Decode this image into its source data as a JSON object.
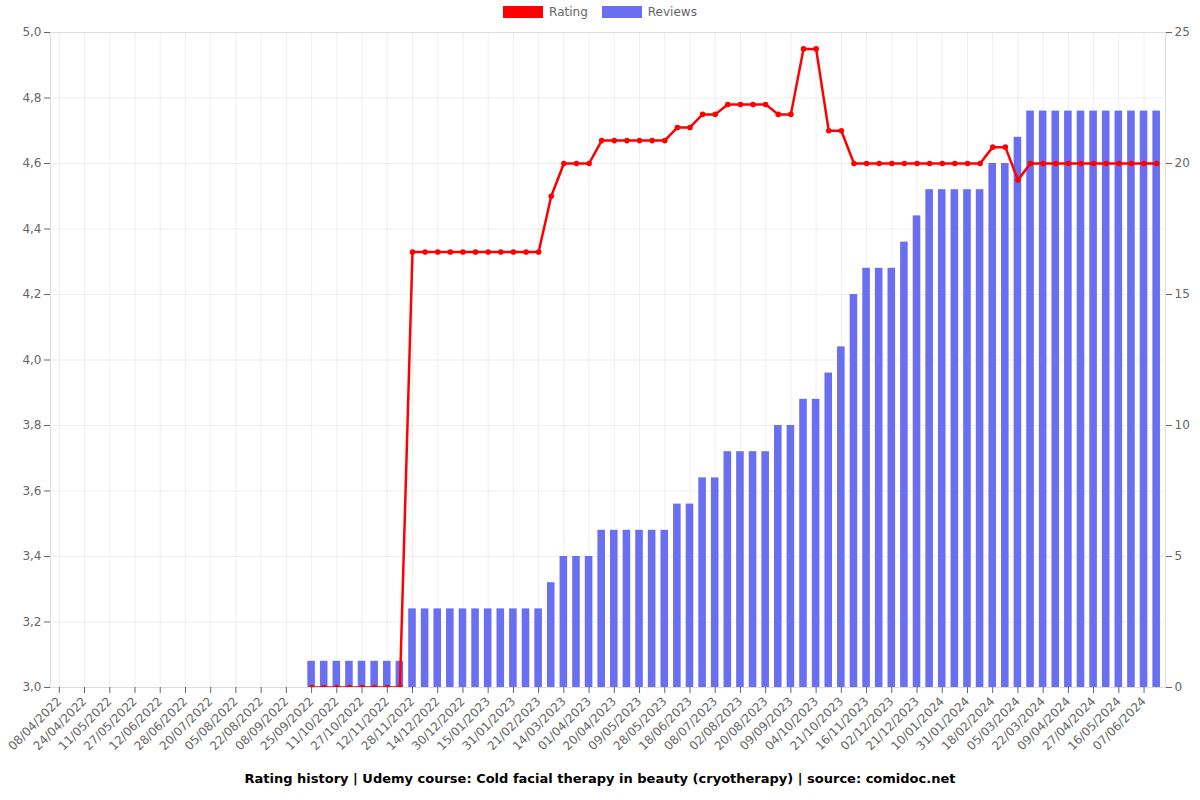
{
  "chart_data": {
    "type": "bar",
    "title": "Rating history | Udemy course: Cold facial therapy in beauty (cryotherapy) | source: comidoc.net",
    "categories": [
      "08/04/2022",
      null,
      "24/04/2022",
      null,
      "11/05/2022",
      null,
      "27/05/2022",
      null,
      "12/06/2022",
      null,
      "28/06/2022",
      null,
      "20/07/2022",
      null,
      "05/08/2022",
      null,
      "22/08/2022",
      null,
      "08/09/2022",
      null,
      "25/09/2022",
      null,
      "11/10/2022",
      null,
      "27/10/2022",
      null,
      "12/11/2022",
      null,
      "28/11/2022",
      null,
      "14/12/2022",
      null,
      "30/12/2022",
      null,
      "15/01/2023",
      null,
      "31/01/2023",
      null,
      "21/02/2023",
      null,
      "14/03/2023",
      null,
      "01/04/2023",
      null,
      "20/04/2023",
      null,
      "09/05/2023",
      null,
      "28/05/2023",
      null,
      "18/06/2023",
      null,
      "08/07/2023",
      null,
      "02/08/2023",
      null,
      "20/08/2023",
      null,
      "09/09/2023",
      null,
      "04/10/2023",
      null,
      "21/10/2023",
      null,
      "16/11/2023",
      null,
      "02/12/2023",
      null,
      "21/12/2023",
      null,
      "10/01/2024",
      null,
      "31/01/2024",
      null,
      "18/02/2024",
      null,
      "05/03/2024",
      null,
      "22/03/2024",
      null,
      "09/04/2024",
      null,
      "27/04/2024",
      null,
      "16/05/2024",
      null,
      "07/06/2024",
      null
    ],
    "series": [
      {
        "name": "Rating",
        "type": "line",
        "color": "#ff0000",
        "marker": "circle",
        "values": [
          null,
          null,
          null,
          null,
          null,
          null,
          null,
          null,
          null,
          null,
          null,
          null,
          null,
          null,
          null,
          null,
          null,
          null,
          null,
          null,
          3.0,
          3.0,
          3.0,
          3.0,
          3.0,
          3.0,
          3.0,
          3.0,
          4.33,
          4.33,
          4.33,
          4.33,
          4.33,
          4.33,
          4.33,
          4.33,
          4.33,
          4.33,
          4.33,
          4.5,
          4.6,
          4.6,
          4.6,
          4.67,
          4.67,
          4.67,
          4.67,
          4.67,
          4.67,
          4.71,
          4.71,
          4.75,
          4.75,
          4.78,
          4.78,
          4.78,
          4.78,
          4.75,
          4.75,
          4.95,
          4.95,
          4.7,
          4.7,
          4.6,
          4.6,
          4.6,
          4.6,
          4.6,
          4.6,
          4.6,
          4.6,
          4.6,
          4.6,
          4.6,
          4.65,
          4.65,
          4.55,
          4.6,
          4.6,
          4.6,
          4.6,
          4.6,
          4.6,
          4.6,
          4.6,
          4.6,
          4.6,
          4.6
        ]
      },
      {
        "name": "Reviews",
        "type": "bar",
        "axis": "y2",
        "color": "#6a6ef0",
        "values": [
          null,
          null,
          null,
          null,
          null,
          null,
          null,
          null,
          null,
          null,
          null,
          null,
          null,
          null,
          null,
          null,
          null,
          null,
          null,
          null,
          1,
          1,
          1,
          1,
          1,
          1,
          1,
          1,
          3,
          3,
          3,
          3,
          3,
          3,
          3,
          3,
          3,
          3,
          3,
          4,
          5,
          5,
          5,
          6,
          6,
          6,
          6,
          6,
          6,
          7,
          7,
          8,
          8,
          9,
          9,
          9,
          9,
          10,
          10,
          11,
          11,
          12,
          13,
          15,
          16,
          16,
          16,
          17,
          18,
          19,
          19,
          19,
          19,
          19,
          20,
          20,
          21,
          22,
          22,
          22,
          22,
          22,
          22,
          22,
          22,
          22,
          22,
          22
        ]
      }
    ],
    "ylim": [
      3.0,
      5.0
    ],
    "yticks": [
      {
        "value": 3.0,
        "label": "3,0"
      },
      {
        "value": 3.2,
        "label": "3,2"
      },
      {
        "value": 3.4,
        "label": "3,4"
      },
      {
        "value": 3.6,
        "label": "3,6"
      },
      {
        "value": 3.8,
        "label": "3,8"
      },
      {
        "value": 4.0,
        "label": "4,0"
      },
      {
        "value": 4.2,
        "label": "4,2"
      },
      {
        "value": 4.4,
        "label": "4,4"
      },
      {
        "value": 4.6,
        "label": "4,6"
      },
      {
        "value": 4.8,
        "label": "4,8"
      },
      {
        "value": 5.0,
        "label": "5,0"
      }
    ],
    "y2lim": [
      0,
      25
    ],
    "y2ticks": [
      0,
      5,
      10,
      15,
      20,
      25
    ],
    "grid": true,
    "legend": "top"
  }
}
